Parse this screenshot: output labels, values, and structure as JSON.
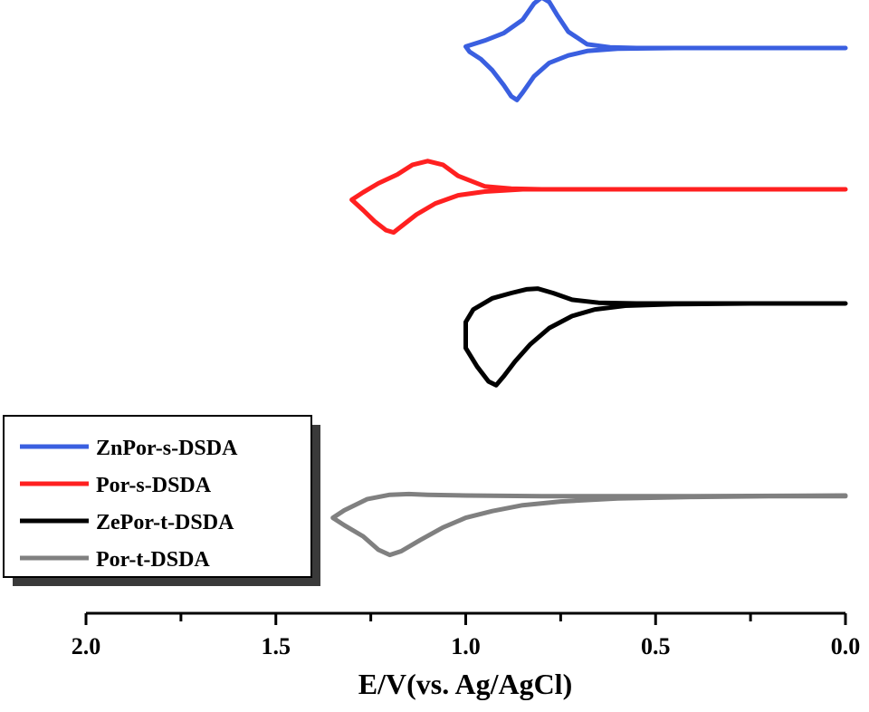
{
  "chart_data": {
    "type": "line",
    "title": "",
    "xlabel": "E/V(vs. Ag/AgCl)",
    "ylabel": "",
    "xlim": [
      2.0,
      0.0
    ],
    "x_reversed": true,
    "x_ticks": [
      "2.0",
      "1.5",
      "1.0",
      "0.5",
      "0.0"
    ],
    "x_tick_values": [
      2.0,
      1.5,
      1.0,
      0.5,
      0.0
    ],
    "y_axis_shown": false,
    "grid": false,
    "legend_position": "bottom-left",
    "legend": [
      "ZnPor-s-DSDA",
      "Por-s-DSDA",
      "ZePor-t-DSDA",
      "Por-t-DSDA"
    ],
    "series": [
      {
        "name": "ZnPor-s-DSDA",
        "color": "#3a5fe0",
        "points": [
          [
            0.0,
            0.0
          ],
          [
            0.2,
            0.0
          ],
          [
            0.4,
            0.0
          ],
          [
            0.55,
            0.0
          ],
          [
            0.62,
            0.01
          ],
          [
            0.68,
            0.05
          ],
          [
            0.73,
            0.22
          ],
          [
            0.76,
            0.45
          ],
          [
            0.78,
            0.62
          ],
          [
            0.8,
            0.68
          ],
          [
            0.82,
            0.6
          ],
          [
            0.85,
            0.38
          ],
          [
            0.9,
            0.2
          ],
          [
            0.95,
            0.1
          ],
          [
            1.0,
            0.02
          ],
          [
            0.99,
            -0.05
          ],
          [
            0.96,
            -0.15
          ],
          [
            0.93,
            -0.3
          ],
          [
            0.9,
            -0.5
          ],
          [
            0.88,
            -0.65
          ],
          [
            0.865,
            -0.7
          ],
          [
            0.85,
            -0.6
          ],
          [
            0.82,
            -0.38
          ],
          [
            0.78,
            -0.2
          ],
          [
            0.73,
            -0.1
          ],
          [
            0.68,
            -0.04
          ],
          [
            0.6,
            -0.01
          ],
          [
            0.45,
            0.0
          ],
          [
            0.2,
            0.0
          ],
          [
            0.0,
            0.0
          ]
        ]
      },
      {
        "name": "Por-s-DSDA",
        "color": "#ff2020",
        "points": [
          [
            0.0,
            0.0
          ],
          [
            0.3,
            0.0
          ],
          [
            0.6,
            0.0
          ],
          [
            0.8,
            0.0
          ],
          [
            0.88,
            0.01
          ],
          [
            0.95,
            0.04
          ],
          [
            1.02,
            0.18
          ],
          [
            1.06,
            0.33
          ],
          [
            1.1,
            0.38
          ],
          [
            1.14,
            0.33
          ],
          [
            1.18,
            0.2
          ],
          [
            1.23,
            0.08
          ],
          [
            1.27,
            -0.04
          ],
          [
            1.3,
            -0.14
          ],
          [
            1.27,
            -0.28
          ],
          [
            1.24,
            -0.43
          ],
          [
            1.21,
            -0.55
          ],
          [
            1.19,
            -0.58
          ],
          [
            1.17,
            -0.5
          ],
          [
            1.13,
            -0.34
          ],
          [
            1.08,
            -0.19
          ],
          [
            1.02,
            -0.08
          ],
          [
            0.95,
            -0.03
          ],
          [
            0.85,
            0.0
          ],
          [
            0.6,
            0.0
          ],
          [
            0.3,
            0.0
          ],
          [
            0.0,
            0.0
          ]
        ]
      },
      {
        "name": "ZePor-t-DSDA",
        "color": "#000000",
        "points": [
          [
            0.0,
            0.0
          ],
          [
            0.3,
            0.0
          ],
          [
            0.55,
            0.0
          ],
          [
            0.65,
            0.01
          ],
          [
            0.72,
            0.05
          ],
          [
            0.77,
            0.14
          ],
          [
            0.81,
            0.2
          ],
          [
            0.84,
            0.19
          ],
          [
            0.88,
            0.14
          ],
          [
            0.93,
            0.07
          ],
          [
            0.98,
            -0.08
          ],
          [
            1.0,
            -0.25
          ],
          [
            1.0,
            -0.6
          ],
          [
            0.97,
            -0.85
          ],
          [
            0.94,
            -1.05
          ],
          [
            0.92,
            -1.1
          ],
          [
            0.9,
            -0.98
          ],
          [
            0.87,
            -0.78
          ],
          [
            0.83,
            -0.55
          ],
          [
            0.78,
            -0.33
          ],
          [
            0.72,
            -0.17
          ],
          [
            0.66,
            -0.08
          ],
          [
            0.58,
            -0.03
          ],
          [
            0.45,
            -0.01
          ],
          [
            0.25,
            0.0
          ],
          [
            0.0,
            0.0
          ]
        ]
      },
      {
        "name": "Por-t-DSDA",
        "color": "#808080",
        "points": [
          [
            0.0,
            0.0
          ],
          [
            0.4,
            -0.01
          ],
          [
            0.8,
            -0.01
          ],
          [
            1.0,
            0.0
          ],
          [
            1.1,
            0.01
          ],
          [
            1.15,
            0.02
          ],
          [
            1.2,
            0.01
          ],
          [
            1.26,
            -0.05
          ],
          [
            1.32,
            -0.2
          ],
          [
            1.35,
            -0.3
          ],
          [
            1.32,
            -0.4
          ],
          [
            1.27,
            -0.55
          ],
          [
            1.23,
            -0.73
          ],
          [
            1.2,
            -0.8
          ],
          [
            1.17,
            -0.75
          ],
          [
            1.12,
            -0.6
          ],
          [
            1.06,
            -0.43
          ],
          [
            1.0,
            -0.3
          ],
          [
            0.93,
            -0.21
          ],
          [
            0.85,
            -0.13
          ],
          [
            0.75,
            -0.08
          ],
          [
            0.6,
            -0.04
          ],
          [
            0.4,
            -0.02
          ],
          [
            0.2,
            -0.01
          ],
          [
            0.0,
            -0.01
          ]
        ]
      }
    ]
  }
}
